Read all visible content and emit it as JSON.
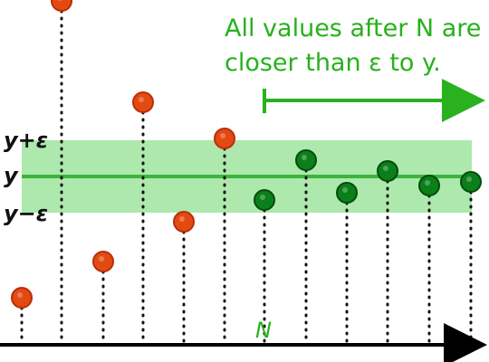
{
  "diagram": {
    "annotation": {
      "line_1": "All values after N are",
      "line_2": "closer than ε to y."
    },
    "labels": {
      "upper": "y+ε",
      "center": "y",
      "lower": "y−ε",
      "n": "N"
    },
    "colors": {
      "red_point": "#e34a12",
      "green_point": "#0b7f19",
      "band": "#9fe49f",
      "center_line": "#3cb43c",
      "axis": "#000000",
      "guide": "#111111",
      "arrow": "#29b11e"
    },
    "sequence": {
      "before_n": [
        0.65,
        4.75,
        1.15,
        3.35,
        1.7,
        2.85
      ],
      "after_n": [
        2.0,
        2.55,
        2.1,
        2.4,
        2.2,
        2.25
      ],
      "y": 2.25,
      "epsilon": 0.5
    }
  }
}
